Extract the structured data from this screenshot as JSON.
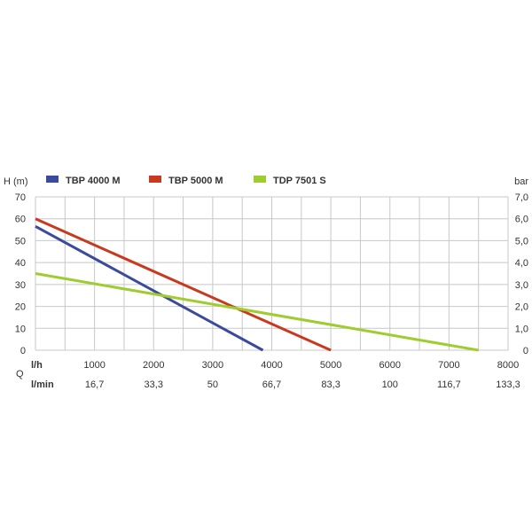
{
  "chart_data": {
    "type": "line",
    "ylabel_left": "H (m)",
    "ylabel_right": "bar",
    "yticks_left": [
      "0",
      "10",
      "20",
      "30",
      "40",
      "50",
      "60",
      "70"
    ],
    "yticks_right": [
      "0",
      "1,0",
      "2,0",
      "3,0",
      "4,0",
      "5,0",
      "6,0",
      "7,0"
    ],
    "ylim": [
      0,
      70
    ],
    "xlim": [
      0,
      8000
    ],
    "q_label": "Q",
    "x_row1_label": "l/h",
    "x_row1_ticks": [
      "1000",
      "2000",
      "3000",
      "4000",
      "5000",
      "6000",
      "7000",
      "8000"
    ],
    "x_row2_label": "l/min",
    "x_row2_ticks": [
      "16,7",
      "33,3",
      "50",
      "66,7",
      "83,3",
      "100",
      "116,7",
      "133,3"
    ],
    "grid": true,
    "legend_position": "top",
    "series": [
      {
        "name": "TBP 4000 M",
        "color": "#3a4a9c",
        "x": [
          0,
          3850
        ],
        "y": [
          56.5,
          0
        ]
      },
      {
        "name": "TBP 5000 M",
        "color": "#c8391e",
        "x": [
          0,
          5000
        ],
        "y": [
          60,
          0
        ]
      },
      {
        "name": "TDP 7501 S",
        "color": "#9fcc2e",
        "x": [
          0,
          7500
        ],
        "y": [
          35,
          0
        ]
      }
    ]
  }
}
